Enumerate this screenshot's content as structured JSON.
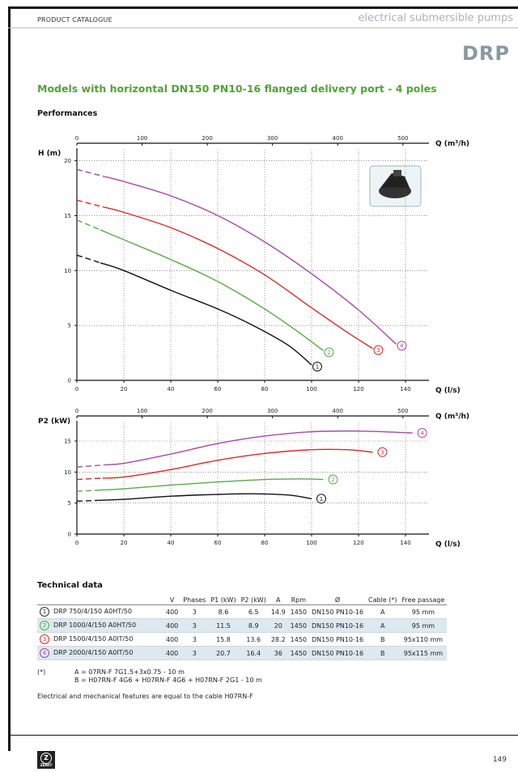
{
  "header": {
    "catalogue": "PRODUCT CATALOGUE",
    "category": "electrical submersible pumps",
    "series": "DRP"
  },
  "section_title": "Models with horizontal DN150 PN10-16 flanged delivery port - 4 poles",
  "performances_title": "Performances",
  "chart_data": [
    {
      "type": "line",
      "title": "",
      "ylabel": "H (m)",
      "xlabel": "Q (l/s)",
      "x2label": "Q (m³/h)",
      "xlim": [
        0,
        150
      ],
      "ylim": [
        0,
        21
      ],
      "x_ticks": [
        0,
        20,
        40,
        60,
        80,
        100,
        120,
        140
      ],
      "x2_ticks": [
        0,
        100,
        200,
        300,
        400,
        500
      ],
      "y_ticks": [
        0,
        5,
        10,
        15,
        20
      ],
      "grid": true,
      "series": [
        {
          "name": "1",
          "color": "#111111",
          "points": [
            [
              0,
              11.4
            ],
            [
              20,
              10
            ],
            [
              40,
              8.2
            ],
            [
              60,
              6.5
            ],
            [
              75,
              5
            ],
            [
              90,
              3.2
            ],
            [
              100,
              1.4
            ]
          ]
        },
        {
          "name": "2",
          "color": "#5aa94a",
          "points": [
            [
              0,
              14.6
            ],
            [
              20,
              12.8
            ],
            [
              40,
              11
            ],
            [
              60,
              9
            ],
            [
              80,
              6.5
            ],
            [
              95,
              4.3
            ],
            [
              105,
              2.7
            ]
          ]
        },
        {
          "name": "3",
          "color": "#d62c2c",
          "points": [
            [
              0,
              16.4
            ],
            [
              20,
              15.3
            ],
            [
              40,
              13.9
            ],
            [
              60,
              12
            ],
            [
              80,
              9.6
            ],
            [
              100,
              6.6
            ],
            [
              115,
              4.4
            ],
            [
              126,
              2.9
            ]
          ]
        },
        {
          "name": "4",
          "color": "#a54aa8",
          "points": [
            [
              0,
              19.2
            ],
            [
              20,
              18.1
            ],
            [
              40,
              16.8
            ],
            [
              60,
              15
            ],
            [
              80,
              12.6
            ],
            [
              100,
              9.7
            ],
            [
              120,
              6.4
            ],
            [
              136,
              3.3
            ]
          ]
        }
      ],
      "dashed_until_q": [
        10,
        10,
        11,
        12
      ]
    },
    {
      "type": "line",
      "title": "",
      "ylabel": "P2 (kW)",
      "xlabel": "Q (l/s)",
      "x2label": "Q (m³/h)",
      "xlim": [
        0,
        150
      ],
      "ylim": [
        0,
        18
      ],
      "x_ticks": [
        0,
        20,
        40,
        60,
        80,
        100,
        120,
        140
      ],
      "x2_ticks": [
        0,
        100,
        200,
        300,
        400,
        500
      ],
      "y_ticks": [
        0,
        5,
        10,
        15
      ],
      "grid": true,
      "series": [
        {
          "name": "1",
          "color": "#111111",
          "points": [
            [
              0,
              5.3
            ],
            [
              20,
              5.6
            ],
            [
              40,
              6.1
            ],
            [
              60,
              6.4
            ],
            [
              75,
              6.5
            ],
            [
              90,
              6.3
            ],
            [
              100,
              5.7
            ]
          ]
        },
        {
          "name": "2",
          "color": "#5aa94a",
          "points": [
            [
              0,
              6.9
            ],
            [
              20,
              7.3
            ],
            [
              40,
              7.9
            ],
            [
              60,
              8.4
            ],
            [
              80,
              8.8
            ],
            [
              95,
              8.9
            ],
            [
              105,
              8.8
            ]
          ]
        },
        {
          "name": "3",
          "color": "#d62c2c",
          "points": [
            [
              0,
              8.8
            ],
            [
              20,
              9.2
            ],
            [
              40,
              10.4
            ],
            [
              60,
              11.9
            ],
            [
              80,
              13
            ],
            [
              100,
              13.6
            ],
            [
              115,
              13.6
            ],
            [
              126,
              13.2
            ]
          ]
        },
        {
          "name": "4",
          "color": "#a54aa8",
          "points": [
            [
              0,
              10.8
            ],
            [
              20,
              11.4
            ],
            [
              40,
              12.9
            ],
            [
              60,
              14.6
            ],
            [
              80,
              15.8
            ],
            [
              100,
              16.5
            ],
            [
              120,
              16.6
            ],
            [
              143,
              16.3
            ]
          ]
        }
      ],
      "dashed_until_q": [
        10,
        10,
        11,
        12
      ]
    }
  ],
  "technical": {
    "title": "Technical data",
    "headers": [
      "",
      "V",
      "Phases",
      "P1 (kW)",
      "P2 (kW)",
      "A",
      "Rpm",
      "Ø",
      "Cable (*)",
      "Free passage"
    ],
    "rows": [
      {
        "n": "1",
        "model": "DRP 750/4/150 A0HT/50",
        "v": "400",
        "phases": "3",
        "p1": "8.6",
        "p2": "6.5",
        "a": "14.9",
        "rpm": "1450",
        "d": "DN150 PN10-16",
        "cable": "A",
        "free": "95 mm"
      },
      {
        "n": "2",
        "model": "DRP 1000/4/150 A0HT/50",
        "v": "400",
        "phases": "3",
        "p1": "11.5",
        "p2": "8.9",
        "a": "20",
        "rpm": "1450",
        "d": "DN150 PN10-16",
        "cable": "A",
        "free": "95 mm"
      },
      {
        "n": "3",
        "model": "DRP 1500/4/150 A0IT/50",
        "v": "400",
        "phases": "3",
        "p1": "15.8",
        "p2": "13.6",
        "a": "28.2",
        "rpm": "1450",
        "d": "DN150 PN10-16",
        "cable": "B",
        "free": "95x110 mm"
      },
      {
        "n": "4",
        "model": "DRP 2000/4/150 A0IT/50",
        "v": "400",
        "phases": "3",
        "p1": "20.7",
        "p2": "16.4",
        "a": "36",
        "rpm": "1450",
        "d": "DN150 PN10-16",
        "cable": "B",
        "free": "95x115 mm"
      }
    ]
  },
  "notes": {
    "marker": "(*)",
    "a": "A = 07RN-F 7G1.5+3x0.75 - 10 m",
    "b": "B = H07RN-F 4G6 + H07RN-F 4G6 + H07RN-F 2G1 - 10 m",
    "footer_note": "Electrical and mechanical features are equal to the cable H07RN-F"
  },
  "footer": {
    "logo_text": "ZENIT",
    "page": "149"
  }
}
